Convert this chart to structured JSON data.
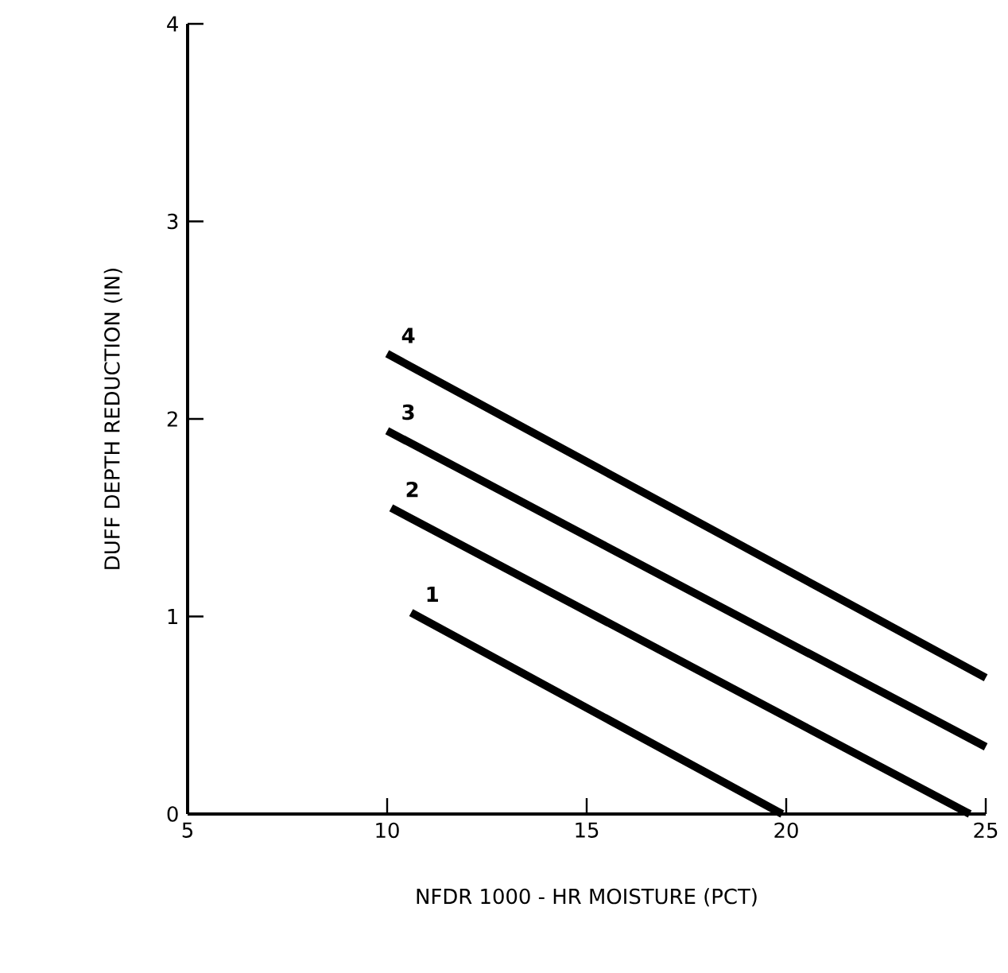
{
  "chart_data": {
    "type": "line",
    "xlabel": "NFDR 1000 - HR MOISTURE (PCT)",
    "ylabel": "DUFF DEPTH REDUCTION (IN)",
    "xlim": [
      5,
      25
    ],
    "ylim": [
      0,
      4
    ],
    "xticks": [
      5,
      10,
      15,
      20,
      25
    ],
    "yticks": [
      0,
      1,
      2,
      3,
      4
    ],
    "grid": false,
    "series": [
      {
        "name": "1",
        "color": "#000000",
        "x": [
          10.6,
          19.9
        ],
        "values": [
          1.02,
          0
        ]
      },
      {
        "name": "2",
        "color": "#000000",
        "x": [
          10.1,
          24.6
        ],
        "values": [
          1.55,
          0
        ]
      },
      {
        "name": "3",
        "color": "#000000",
        "x": [
          10,
          25
        ],
        "values": [
          1.94,
          0.34
        ]
      },
      {
        "name": "4",
        "color": "#000000",
        "x": [
          10,
          25
        ],
        "values": [
          2.33,
          0.69
        ]
      }
    ]
  }
}
